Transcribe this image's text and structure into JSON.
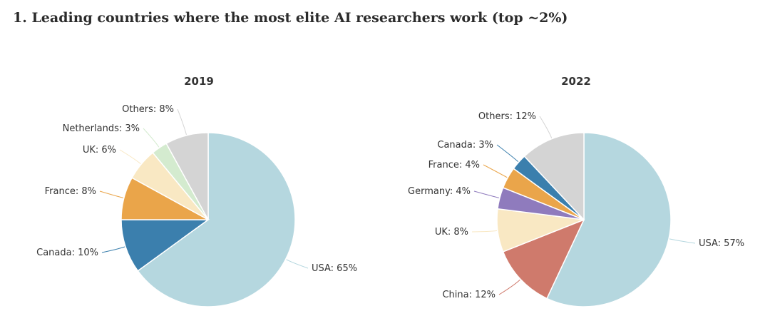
{
  "page": {
    "title": "1. Leading countries where the most elite AI researchers work (top ~2%)"
  },
  "chart_data": [
    {
      "type": "pie",
      "title": "2019",
      "slices": [
        {
          "label": "USA",
          "value": 65,
          "display": "USA: 65%",
          "color": "#b5d7df"
        },
        {
          "label": "Canada",
          "value": 10,
          "display": "Canada: 10%",
          "color": "#3b7fad"
        },
        {
          "label": "France",
          "value": 8,
          "display": "France: 8%",
          "color": "#eaa54a"
        },
        {
          "label": "UK",
          "value": 6,
          "display": "UK: 6%",
          "color": "#f9e8c3"
        },
        {
          "label": "Netherlands",
          "value": 3,
          "display": "Netherlands: 3%",
          "color": "#d4ebcf"
        },
        {
          "label": "Others",
          "value": 8,
          "display": "Others: 8%",
          "color": "#d4d4d4"
        }
      ]
    },
    {
      "type": "pie",
      "title": "2022",
      "slices": [
        {
          "label": "USA",
          "value": 57,
          "display": "USA: 57%",
          "color": "#b5d7df"
        },
        {
          "label": "China",
          "value": 12,
          "display": "China: 12%",
          "color": "#cf7a6c"
        },
        {
          "label": "UK",
          "value": 8,
          "display": "UK: 8%",
          "color": "#f9e8c3"
        },
        {
          "label": "Germany",
          "value": 4,
          "display": "Germany: 4%",
          "color": "#8f7bbd"
        },
        {
          "label": "France",
          "value": 4,
          "display": "France: 4%",
          "color": "#eaa54a"
        },
        {
          "label": "Canada",
          "value": 3,
          "display": "Canada: 3%",
          "color": "#3b7fad"
        },
        {
          "label": "Others",
          "value": 12,
          "display": "Others: 12%",
          "color": "#d4d4d4"
        }
      ]
    }
  ]
}
